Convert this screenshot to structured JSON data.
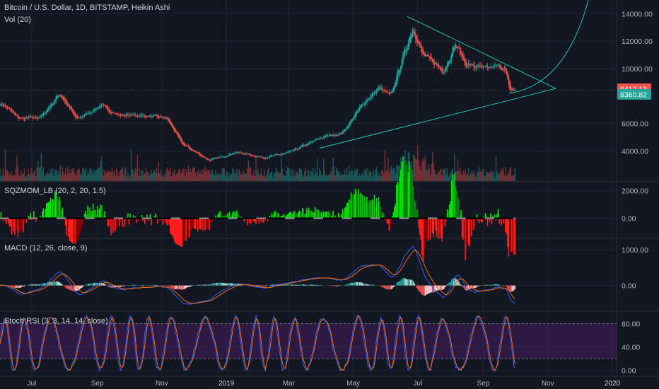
{
  "header": {
    "title": "Bitcoin / U.S. Dollar, 1D, BITSTAMP, Heikin Ashi",
    "vol_label": "Vol (20)"
  },
  "panes": {
    "sqzmom_label": "SQZMOM_LB (20, 2, 20, 1.5)",
    "macd_label": "MACD (12, 26, close, 9)",
    "stoch_label": "Stoch RSI (3, 3, 14, 14, close)"
  },
  "price_badges": {
    "last": "8412.13",
    "close": "8360.82"
  },
  "colors": {
    "background": "#131722",
    "up": "#26a69a",
    "down": "#ef5350",
    "sqz_up": "#00e600",
    "sqz_down": "#ff1f1f",
    "macd": "#2962ff",
    "signal": "#ff6d00",
    "stoch_band": "#7b1fa2",
    "trendline": "#1ec6b5"
  },
  "chart_data": [
    {
      "type": "candlestick",
      "name": "price",
      "x_ticks": [
        "Jul",
        "Sep",
        "Nov",
        "2019",
        "Mar",
        "May",
        "Jul",
        "Sep",
        "Nov",
        "2020"
      ],
      "y_ticks": [
        "14000.00",
        "12000.00",
        "10000.00",
        "6000.00",
        "4000.00"
      ],
      "ylim": [
        1800,
        15000
      ],
      "path_dates": [
        "2018-06-01",
        "2018-06-20",
        "2018-07-10",
        "2018-07-27",
        "2018-08-12",
        "2018-09-04",
        "2018-09-20",
        "2018-10-10",
        "2018-11-05",
        "2018-11-20",
        "2018-12-15",
        "2019-01-10",
        "2019-02-05",
        "2019-03-01",
        "2019-04-01",
        "2019-04-20",
        "2019-05-10",
        "2019-05-25",
        "2019-06-05",
        "2019-06-15",
        "2019-06-26",
        "2019-07-05",
        "2019-07-15",
        "2019-07-25",
        "2019-08-05",
        "2019-08-15",
        "2019-09-01",
        "2019-09-15",
        "2019-09-21",
        "2019-09-25",
        "2019-10-01"
      ],
      "path_values": [
        7500,
        6300,
        6500,
        8200,
        6300,
        7300,
        6600,
        6600,
        6400,
        4500,
        3300,
        3900,
        3500,
        3900,
        5000,
        5300,
        7500,
        8600,
        8000,
        10500,
        13000,
        11000,
        10500,
        9800,
        11800,
        10300,
        10000,
        10200,
        10000,
        8500,
        8400
      ]
    },
    {
      "type": "bar",
      "name": "Vol (20)"
    },
    {
      "type": "area",
      "name": "SQZMOM_LB (20, 2, 20, 1.5)",
      "y_ticks": [
        "2000.00",
        "0.00"
      ],
      "ylim": [
        -1400,
        2600
      ]
    },
    {
      "type": "line",
      "name": "MACD (12, 26, close, 9)",
      "y_ticks": [
        "1000.00",
        "0.00"
      ],
      "ylim": [
        -700,
        1300
      ]
    },
    {
      "type": "line",
      "name": "Stoch RSI (3, 3, 14, 14, close)",
      "y_ticks": [
        "80.00",
        "40.00",
        "0.00"
      ],
      "ylim": [
        -10,
        100
      ]
    }
  ]
}
